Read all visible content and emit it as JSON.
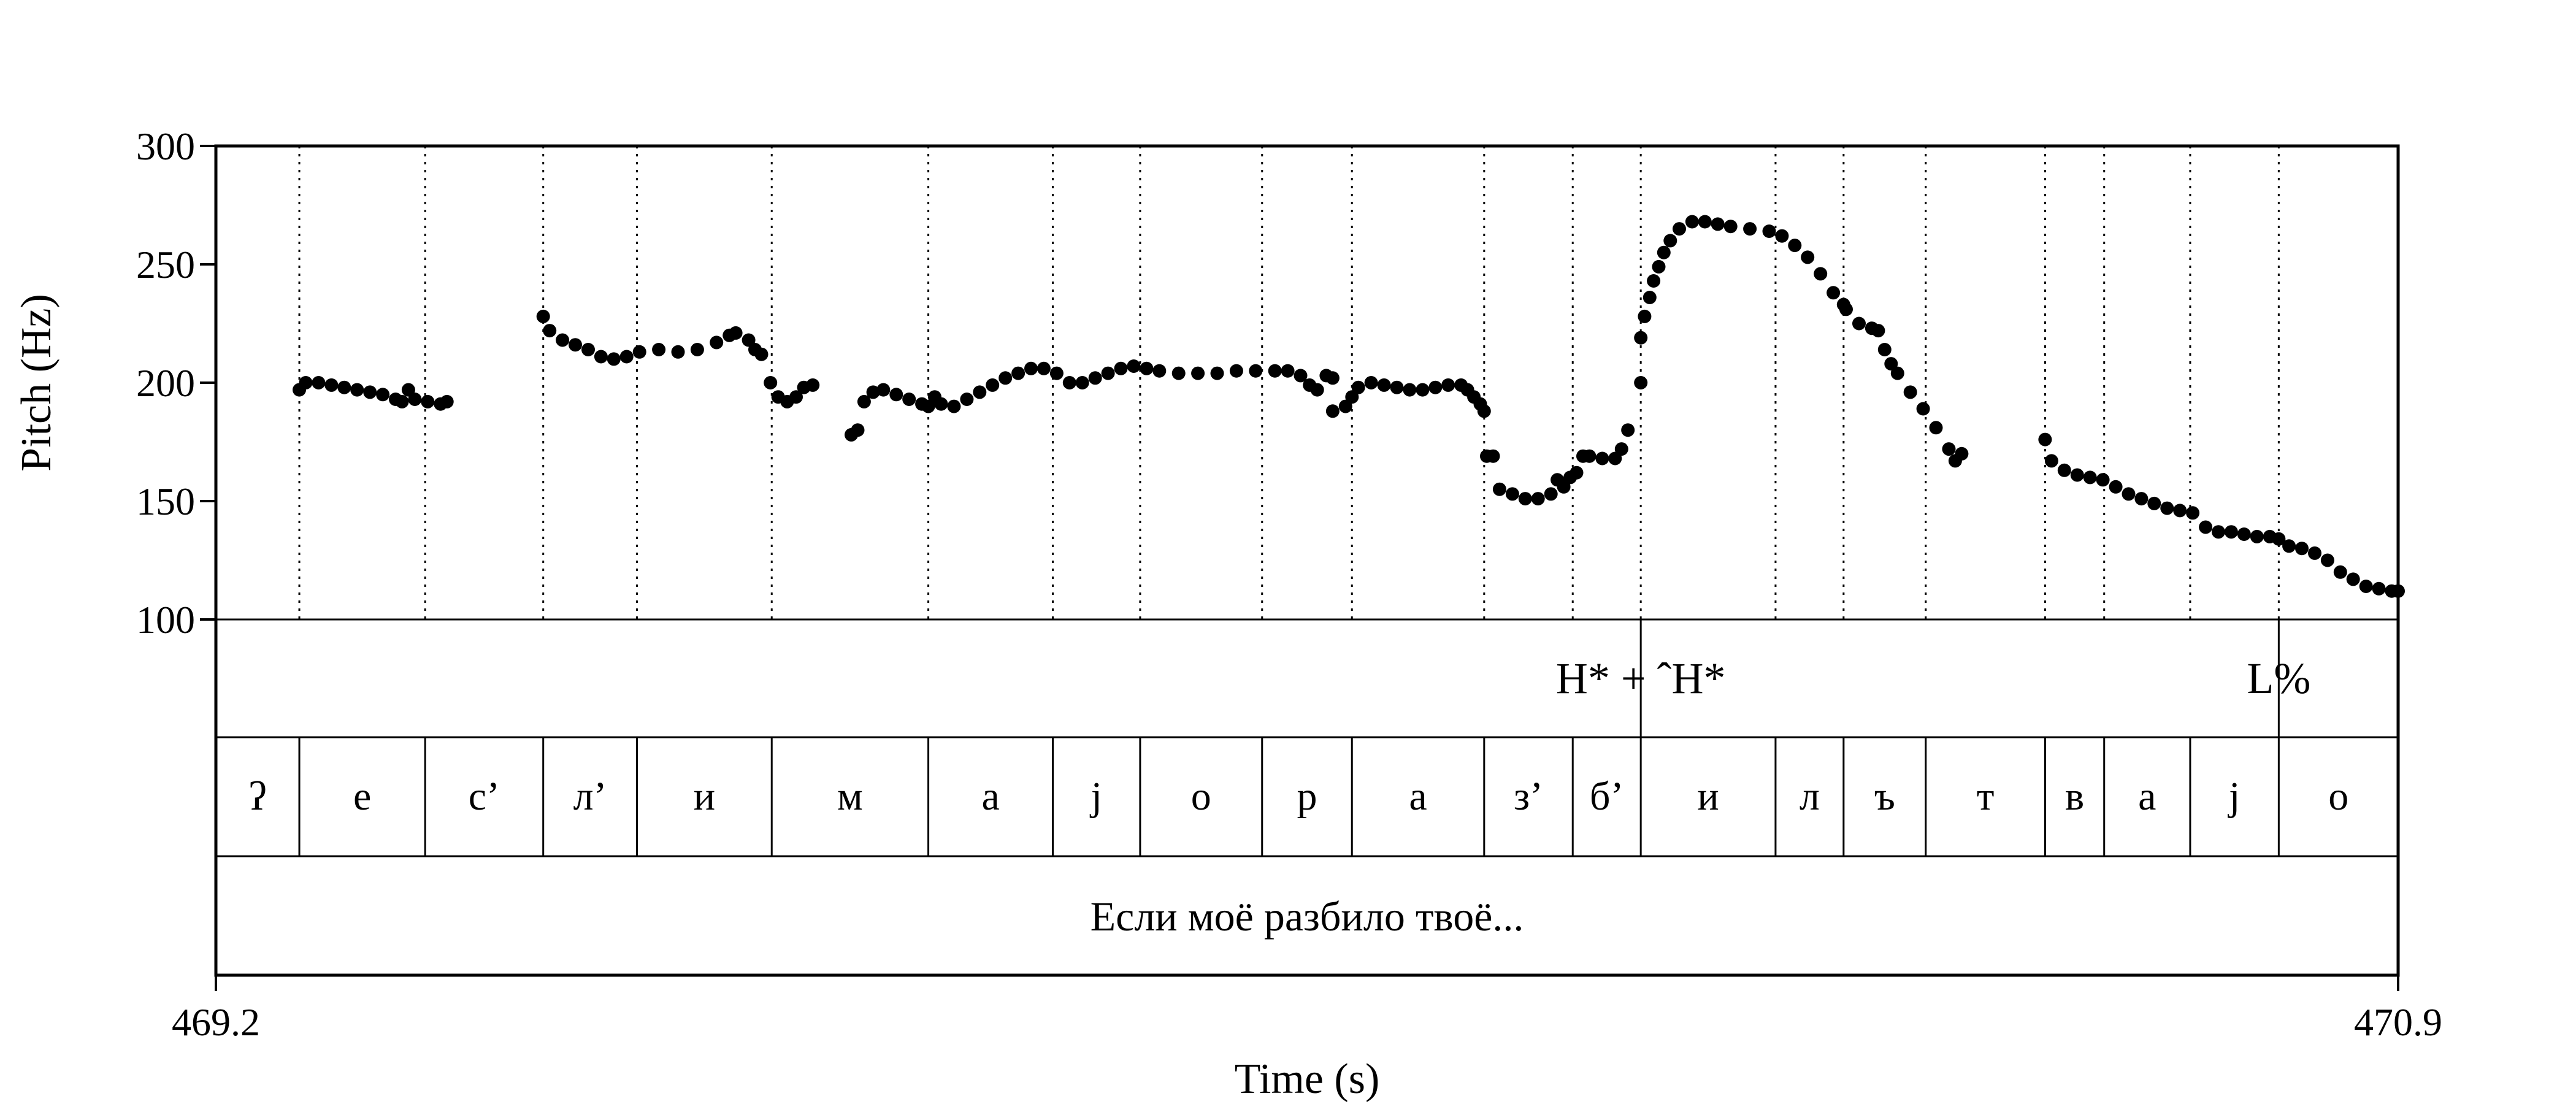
{
  "chart_data": {
    "type": "scatter",
    "xlabel": "Time (s)",
    "ylabel": "Pitch (Hz)",
    "xlim": [
      469.2,
      470.9
    ],
    "ylim": [
      100,
      300
    ],
    "x_tick_labels": [
      "469.2",
      "470.9"
    ],
    "y_ticks": [
      100,
      150,
      200,
      250,
      300
    ],
    "grid": "dotted vertical lines at segment boundaries",
    "marker_color": "#000000",
    "segment_boundaries": [
      469.265,
      469.363,
      469.455,
      469.528,
      469.633,
      469.755,
      469.852,
      469.92,
      470.015,
      470.085,
      470.188,
      470.257,
      470.31,
      470.415,
      470.468,
      470.532,
      470.625,
      470.671,
      470.738,
      470.807
    ],
    "tiers": {
      "tones": {
        "labels": [
          {
            "text": "H* + ˆH*",
            "time": 470.31
          },
          {
            "text": "L%",
            "time": 470.807
          }
        ]
      },
      "segments": {
        "labels": [
          "ʔ",
          "е",
          "с’",
          "л’",
          "и",
          "м",
          "а",
          "j",
          "о",
          "р",
          "а",
          "з’",
          "б’",
          "и",
          "л",
          "ъ",
          "т",
          "в",
          "а",
          "j",
          "о"
        ]
      },
      "sentence": {
        "text": "Если моё разбило твоё..."
      }
    },
    "series": [
      {
        "points": [
          [
            469.265,
            197
          ],
          [
            469.27,
            200
          ],
          [
            469.28,
            200
          ],
          [
            469.29,
            199
          ],
          [
            469.3,
            198
          ],
          [
            469.31,
            197
          ],
          [
            469.32,
            196
          ],
          [
            469.33,
            195
          ],
          [
            469.34,
            193
          ],
          [
            469.345,
            192
          ],
          [
            469.35,
            197
          ],
          [
            469.355,
            193
          ],
          [
            469.365,
            192
          ],
          [
            469.375,
            191
          ],
          [
            469.38,
            192
          ],
          [
            469.455,
            228
          ],
          [
            469.46,
            222
          ],
          [
            469.47,
            218
          ],
          [
            469.48,
            216
          ],
          [
            469.49,
            214
          ],
          [
            469.5,
            211
          ],
          [
            469.51,
            210
          ],
          [
            469.52,
            211
          ],
          [
            469.53,
            213
          ],
          [
            469.545,
            214
          ],
          [
            469.56,
            213
          ],
          [
            469.575,
            214
          ],
          [
            469.59,
            217
          ],
          [
            469.6,
            220
          ],
          [
            469.605,
            221
          ],
          [
            469.615,
            218
          ],
          [
            469.62,
            214
          ],
          [
            469.625,
            212
          ],
          [
            469.632,
            200
          ],
          [
            469.638,
            194
          ],
          [
            469.645,
            192
          ],
          [
            469.652,
            194
          ],
          [
            469.658,
            198
          ],
          [
            469.665,
            199
          ],
          [
            469.695,
            178
          ],
          [
            469.7,
            180
          ],
          [
            469.705,
            192
          ],
          [
            469.712,
            196
          ],
          [
            469.72,
            197
          ],
          [
            469.73,
            195
          ],
          [
            469.74,
            193
          ],
          [
            469.75,
            191
          ],
          [
            469.755,
            190
          ],
          [
            469.76,
            194
          ],
          [
            469.765,
            191
          ],
          [
            469.775,
            190
          ],
          [
            469.785,
            193
          ],
          [
            469.795,
            196
          ],
          [
            469.805,
            199
          ],
          [
            469.815,
            202
          ],
          [
            469.825,
            204
          ],
          [
            469.835,
            206
          ],
          [
            469.845,
            206
          ],
          [
            469.855,
            204
          ],
          [
            469.865,
            200
          ],
          [
            469.875,
            200
          ],
          [
            469.885,
            202
          ],
          [
            469.895,
            204
          ],
          [
            469.905,
            206
          ],
          [
            469.915,
            207
          ],
          [
            469.925,
            206
          ],
          [
            469.935,
            205
          ],
          [
            469.95,
            204
          ],
          [
            469.965,
            204
          ],
          [
            469.98,
            204
          ],
          [
            469.995,
            205
          ],
          [
            470.01,
            205
          ],
          [
            470.025,
            205
          ],
          [
            470.035,
            205
          ],
          [
            470.045,
            203
          ],
          [
            470.052,
            199
          ],
          [
            470.058,
            197
          ],
          [
            470.065,
            203
          ],
          [
            470.07,
            202
          ],
          [
            470.07,
            188
          ],
          [
            470.08,
            190
          ],
          [
            470.085,
            194
          ],
          [
            470.09,
            198
          ],
          [
            470.1,
            200
          ],
          [
            470.11,
            199
          ],
          [
            470.12,
            198
          ],
          [
            470.13,
            197
          ],
          [
            470.14,
            197
          ],
          [
            470.15,
            198
          ],
          [
            470.16,
            199
          ],
          [
            470.17,
            199
          ],
          [
            470.175,
            197
          ],
          [
            470.18,
            194
          ],
          [
            470.185,
            191
          ],
          [
            470.188,
            188
          ],
          [
            470.19,
            169
          ],
          [
            470.195,
            169
          ],
          [
            470.2,
            155
          ],
          [
            470.21,
            153
          ],
          [
            470.22,
            151
          ],
          [
            470.23,
            151
          ],
          [
            470.24,
            153
          ],
          [
            470.245,
            159
          ],
          [
            470.25,
            156
          ],
          [
            470.255,
            160
          ],
          [
            470.26,
            162
          ],
          [
            470.265,
            169
          ],
          [
            470.27,
            169
          ],
          [
            470.28,
            168
          ],
          [
            470.29,
            168
          ],
          [
            470.295,
            172
          ],
          [
            470.3,
            180
          ],
          [
            470.31,
            200
          ],
          [
            470.31,
            219
          ],
          [
            470.313,
            228
          ],
          [
            470.317,
            236
          ],
          [
            470.32,
            243
          ],
          [
            470.324,
            249
          ],
          [
            470.328,
            255
          ],
          [
            470.333,
            260
          ],
          [
            470.34,
            265
          ],
          [
            470.35,
            268
          ],
          [
            470.36,
            268
          ],
          [
            470.37,
            267
          ],
          [
            470.38,
            266
          ],
          [
            470.395,
            265
          ],
          [
            470.41,
            264
          ],
          [
            470.42,
            262
          ],
          [
            470.43,
            258
          ],
          [
            470.44,
            253
          ],
          [
            470.45,
            246
          ],
          [
            470.46,
            238
          ],
          [
            470.468,
            233
          ],
          [
            470.47,
            231
          ],
          [
            470.48,
            225
          ],
          [
            470.49,
            223
          ],
          [
            470.495,
            222
          ],
          [
            470.5,
            214
          ],
          [
            470.505,
            208
          ],
          [
            470.51,
            204
          ],
          [
            470.52,
            196
          ],
          [
            470.53,
            189
          ],
          [
            470.54,
            181
          ],
          [
            470.55,
            172
          ],
          [
            470.555,
            167
          ],
          [
            470.56,
            170
          ],
          [
            470.625,
            176
          ],
          [
            470.63,
            167
          ],
          [
            470.64,
            163
          ],
          [
            470.65,
            161
          ],
          [
            470.66,
            160
          ],
          [
            470.67,
            159
          ],
          [
            470.68,
            156
          ],
          [
            470.69,
            153
          ],
          [
            470.7,
            151
          ],
          [
            470.71,
            149
          ],
          [
            470.72,
            147
          ],
          [
            470.73,
            146
          ],
          [
            470.74,
            145
          ],
          [
            470.75,
            139
          ],
          [
            470.76,
            137
          ],
          [
            470.77,
            137
          ],
          [
            470.78,
            136
          ],
          [
            470.79,
            135
          ],
          [
            470.8,
            135
          ],
          [
            470.807,
            134
          ],
          [
            470.815,
            131
          ],
          [
            470.825,
            130
          ],
          [
            470.835,
            128
          ],
          [
            470.845,
            125
          ],
          [
            470.855,
            120
          ],
          [
            470.865,
            117
          ],
          [
            470.875,
            114
          ],
          [
            470.885,
            113
          ],
          [
            470.895,
            112
          ],
          [
            470.9,
            112
          ]
        ]
      }
    ]
  }
}
